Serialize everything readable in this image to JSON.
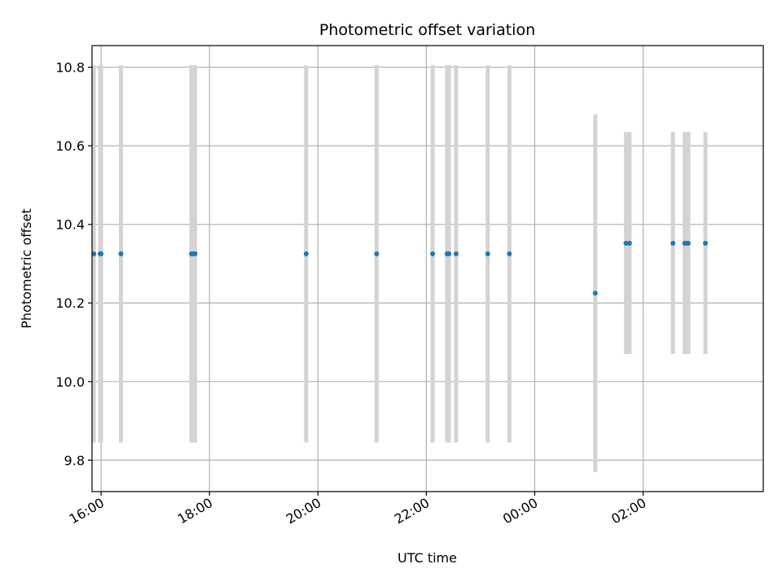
{
  "chart_data": {
    "type": "scatter",
    "title": "Photometric offset variation",
    "xlabel": "UTC time",
    "ylabel": "Photometric offset",
    "x_ticks": [
      "16:00",
      "18:00",
      "20:00",
      "22:00",
      "00:00",
      "02:00"
    ],
    "y_ticks": [
      "9.8",
      "10.0",
      "10.2",
      "10.4",
      "10.6",
      "10.8"
    ],
    "xlim": [
      "15:50",
      "04:13"
    ],
    "ylim": [
      9.72,
      10.855
    ],
    "grid": true,
    "colors": {
      "point": "#1f77b4",
      "errorbar": "#d3d3d3",
      "grid": "#b0b0b0"
    },
    "points": [
      {
        "t": "15:52",
        "y": 10.325,
        "ylow": 9.845,
        "yhigh": 10.805
      },
      {
        "t": "15:59",
        "y": 10.325,
        "ylow": 9.845,
        "yhigh": 10.805
      },
      {
        "t": "16:00",
        "y": 10.325,
        "ylow": 9.845,
        "yhigh": 10.805
      },
      {
        "t": "16:22",
        "y": 10.325,
        "ylow": 9.845,
        "yhigh": 10.805
      },
      {
        "t": "17:40",
        "y": 10.325,
        "ylow": 9.845,
        "yhigh": 10.805
      },
      {
        "t": "17:42",
        "y": 10.325,
        "ylow": 9.845,
        "yhigh": 10.805
      },
      {
        "t": "17:44",
        "y": 10.325,
        "ylow": 9.845,
        "yhigh": 10.805
      },
      {
        "t": "19:47",
        "y": 10.325,
        "ylow": 9.845,
        "yhigh": 10.805
      },
      {
        "t": "21:05",
        "y": 10.325,
        "ylow": 9.845,
        "yhigh": 10.805
      },
      {
        "t": "22:07",
        "y": 10.325,
        "ylow": 9.845,
        "yhigh": 10.805
      },
      {
        "t": "22:23",
        "y": 10.325,
        "ylow": 9.845,
        "yhigh": 10.805
      },
      {
        "t": "22:25",
        "y": 10.325,
        "ylow": 9.845,
        "yhigh": 10.805
      },
      {
        "t": "22:33",
        "y": 10.325,
        "ylow": 9.845,
        "yhigh": 10.805
      },
      {
        "t": "23:08",
        "y": 10.325,
        "ylow": 9.845,
        "yhigh": 10.805
      },
      {
        "t": "23:32",
        "y": 10.325,
        "ylow": 9.845,
        "yhigh": 10.805
      },
      {
        "t": "01:07",
        "y": 10.225,
        "ylow": 9.77,
        "yhigh": 10.68
      },
      {
        "t": "01:41",
        "y": 10.352,
        "ylow": 10.07,
        "yhigh": 10.635
      },
      {
        "t": "01:45",
        "y": 10.352,
        "ylow": 10.07,
        "yhigh": 10.635
      },
      {
        "t": "02:33",
        "y": 10.352,
        "ylow": 10.07,
        "yhigh": 10.635
      },
      {
        "t": "02:46",
        "y": 10.352,
        "ylow": 10.07,
        "yhigh": 10.635
      },
      {
        "t": "02:48",
        "y": 10.352,
        "ylow": 10.07,
        "yhigh": 10.635
      },
      {
        "t": "02:50",
        "y": 10.352,
        "ylow": 10.07,
        "yhigh": 10.635
      },
      {
        "t": "03:09",
        "y": 10.352,
        "ylow": 10.07,
        "yhigh": 10.635
      }
    ]
  }
}
